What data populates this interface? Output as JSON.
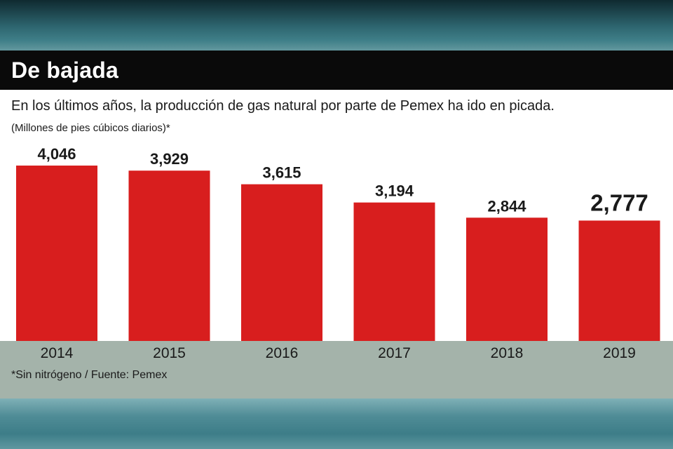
{
  "header": {
    "title": "De bajada"
  },
  "subtitle": "En los últimos años, la producción de gas natural por parte de Pemex ha ido en picada.",
  "units_note": "(Millones de pies cúbicos diarios)*",
  "footnote": "*Sin nitrógeno / Fuente: Pemex",
  "colors": {
    "bar": "#d81e1e",
    "title_bar": "#0a0a0a",
    "footer_band": "#a4b3aa"
  },
  "chart_data": {
    "type": "bar",
    "title": "De bajada",
    "categories": [
      "2014",
      "2015",
      "2016",
      "2017",
      "2018",
      "2019"
    ],
    "values": [
      4046,
      3929,
      3615,
      3194,
      2844,
      2777
    ],
    "value_labels": [
      "4,046",
      "3,929",
      "3,615",
      "3,194",
      "2,844",
      "2,777"
    ],
    "highlight_index": 5,
    "ylabel": "(Millones de pies cúbicos diarios)*",
    "xlabel": "",
    "ylim": [
      0,
      4200
    ],
    "grid": false,
    "legend": "none"
  }
}
